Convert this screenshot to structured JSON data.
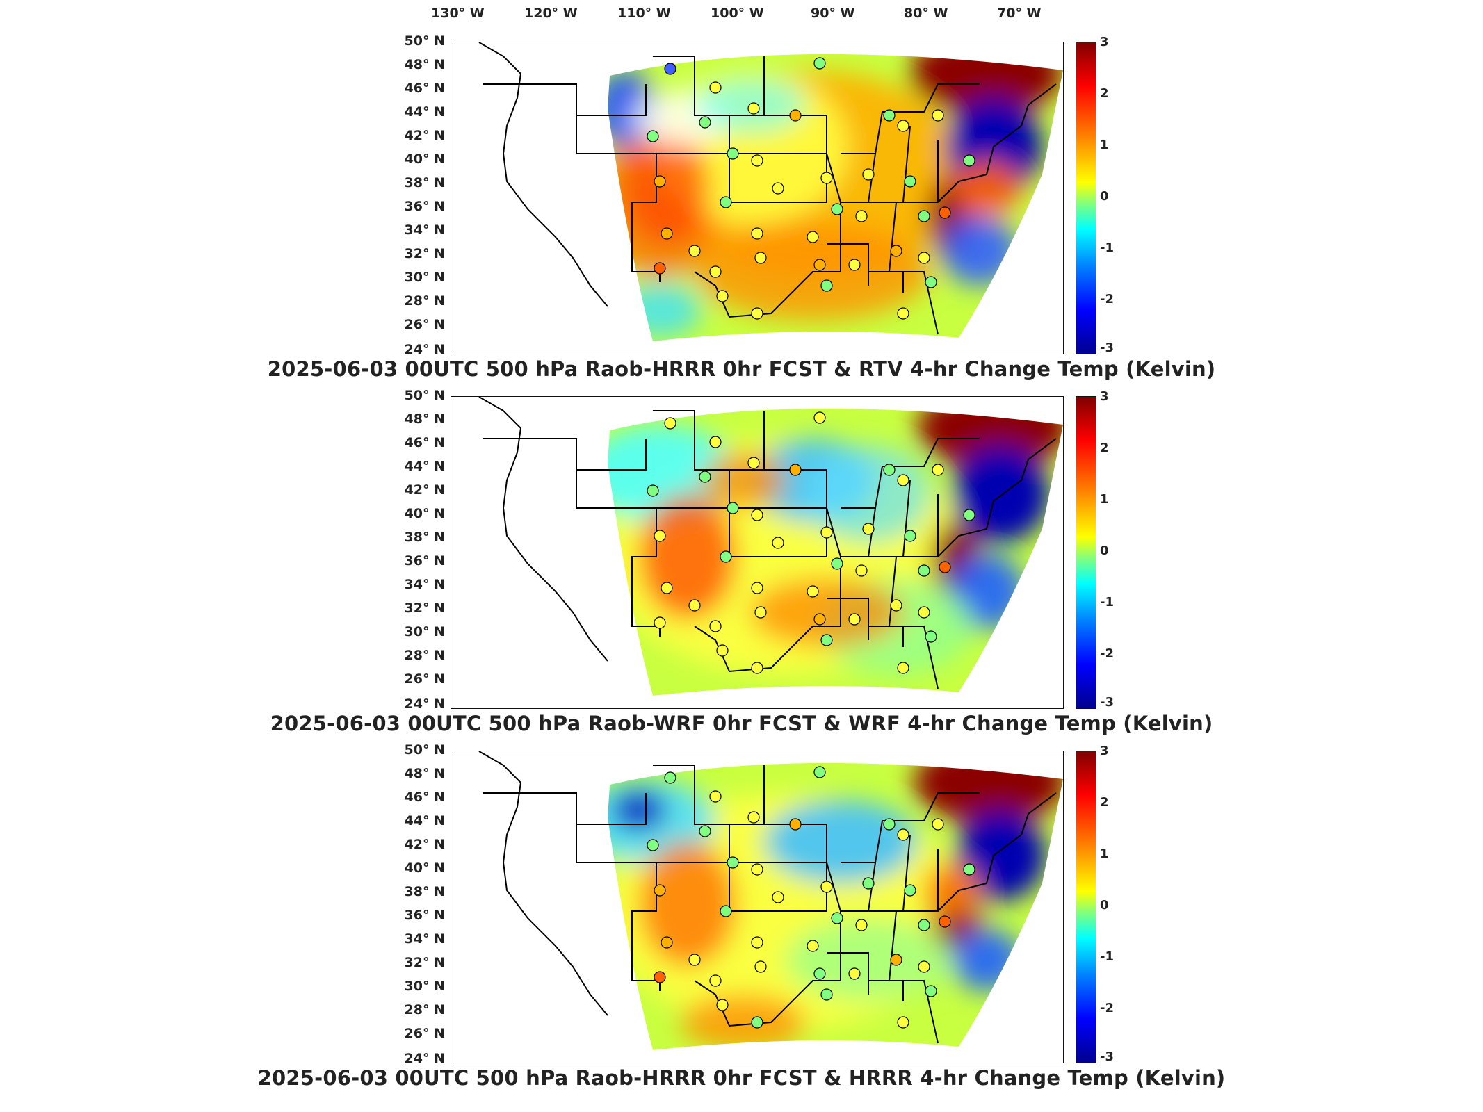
{
  "lon_labels": [
    "130° W",
    "120° W",
    "110° W",
    "100° W",
    "90° W",
    "80° W",
    "70° W"
  ],
  "lat_labels": [
    "50° N",
    "48° N",
    "46° N",
    "44° N",
    "42° N",
    "40° N",
    "38° N",
    "36° N",
    "34° N",
    "32° N",
    "30° N",
    "28° N",
    "26° N",
    "24° N"
  ],
  "colorbar": {
    "ticks": [
      "3",
      "2",
      "1",
      "0",
      "-1",
      "-2",
      "-3"
    ],
    "range": [
      -3,
      3
    ],
    "colormap": "jet"
  },
  "panels": [
    {
      "title": "2025-06-03 00UTC 500 hPa Raob-HRRR 0hr FCST & RTV 4-hr Change Temp (Kelvin)",
      "style": "rtv"
    },
    {
      "title": "2025-06-03 00UTC 500 hPa Raob-WRF 0hr FCST & WRF 4-hr Change Temp (Kelvin)",
      "style": "wrf"
    },
    {
      "title": "2025-06-03 00UTC 500 hPa Raob-HRRR 0hr FCST & HRRR 4-hr Change Temp (Kelvin)",
      "style": "hrrr"
    }
  ],
  "colors": {
    "warm_dark": "#8b0000",
    "cold_dark": "#00008b",
    "mid": "#c8ff40",
    "outline": "#000000"
  }
}
